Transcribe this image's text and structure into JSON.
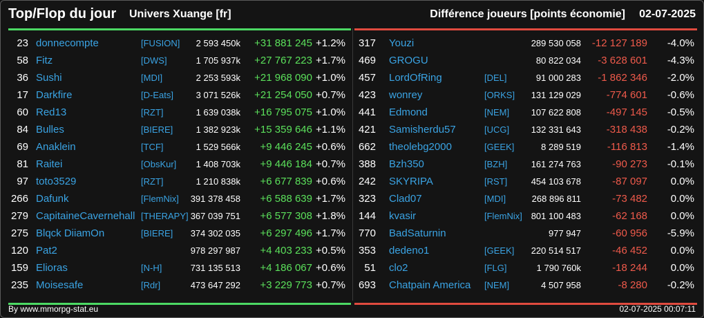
{
  "header": {
    "title": "Top/Flop du jour",
    "universe": "Univers Xuange [fr]",
    "subtitle": "Différence joueurs [points économie]",
    "date": "02-07-2025"
  },
  "top": [
    {
      "rank": "23",
      "name": "donnecompte",
      "alliance": "[FUSION]",
      "points": "2 593 450k",
      "delta": "+31 881 245",
      "pct": "+1.2%"
    },
    {
      "rank": "58",
      "name": "Fitz",
      "alliance": "[DWS]",
      "points": "1 705 937k",
      "delta": "+27 767 223",
      "pct": "+1.7%"
    },
    {
      "rank": "36",
      "name": "Sushi",
      "alliance": "[MDI]",
      "points": "2 253 593k",
      "delta": "+21 968 090",
      "pct": "+1.0%"
    },
    {
      "rank": "17",
      "name": "Darkfire",
      "alliance": "[D-Eats]",
      "points": "3 071 526k",
      "delta": "+21 254 050",
      "pct": "+0.7%"
    },
    {
      "rank": "60",
      "name": "Red13",
      "alliance": "[RZT]",
      "points": "1 639 038k",
      "delta": "+16 795 075",
      "pct": "+1.0%"
    },
    {
      "rank": "84",
      "name": "Bulles",
      "alliance": "[BIERE]",
      "points": "1 382 923k",
      "delta": "+15 359 646",
      "pct": "+1.1%"
    },
    {
      "rank": "69",
      "name": "Anaklein",
      "alliance": "[TCF]",
      "points": "1 529 566k",
      "delta": "+9 446 245",
      "pct": "+0.6%"
    },
    {
      "rank": "81",
      "name": "Raitei",
      "alliance": "[ObsKur]",
      "points": "1 408 703k",
      "delta": "+9 446 184",
      "pct": "+0.7%"
    },
    {
      "rank": "97",
      "name": "toto3529",
      "alliance": "[RZT]",
      "points": "1 210 838k",
      "delta": "+6 677 839",
      "pct": "+0.6%"
    },
    {
      "rank": "266",
      "name": "Dafunk",
      "alliance": "[FlemNix]",
      "points": "391 378 458",
      "delta": "+6 588 639",
      "pct": "+1.7%"
    },
    {
      "rank": "279",
      "name": "CapitaineCavernehall",
      "alliance": "[THERAPY]",
      "points": "367 039 751",
      "delta": "+6 577 308",
      "pct": "+1.8%"
    },
    {
      "rank": "275",
      "name": "Blqck DiiamOn",
      "alliance": "[BIERE]",
      "points": "374 302 035",
      "delta": "+6 297 496",
      "pct": "+1.7%"
    },
    {
      "rank": "120",
      "name": "Pat2",
      "alliance": "",
      "points": "978 297 987",
      "delta": "+4 403 233",
      "pct": "+0.5%"
    },
    {
      "rank": "159",
      "name": "Elioras",
      "alliance": "[N-H]",
      "points": "731 135 513",
      "delta": "+4 186 067",
      "pct": "+0.6%"
    },
    {
      "rank": "235",
      "name": "Moisesafe",
      "alliance": "[Rdr]",
      "points": "473 647 292",
      "delta": "+3 229 773",
      "pct": "+0.7%"
    }
  ],
  "flop": [
    {
      "rank": "317",
      "name": "Youzi",
      "alliance": "",
      "points": "289 530 058",
      "delta": "-12 127 189",
      "pct": "-4.0%"
    },
    {
      "rank": "469",
      "name": "GROGU",
      "alliance": "",
      "points": "80 822 034",
      "delta": "-3 628 601",
      "pct": "-4.3%"
    },
    {
      "rank": "457",
      "name": "LordOfRing",
      "alliance": "[DEL]",
      "points": "91 000 283",
      "delta": "-1 862 346",
      "pct": "-2.0%"
    },
    {
      "rank": "423",
      "name": "wonrey",
      "alliance": "[ORKS]",
      "points": "131 129 029",
      "delta": "-774 601",
      "pct": "-0.6%"
    },
    {
      "rank": "441",
      "name": "Edmond",
      "alliance": "[NEM]",
      "points": "107 622 808",
      "delta": "-497 145",
      "pct": "-0.5%"
    },
    {
      "rank": "421",
      "name": "Samisherdu57",
      "alliance": "[UCG]",
      "points": "132 331 643",
      "delta": "-318 438",
      "pct": "-0.2%"
    },
    {
      "rank": "662",
      "name": "theolebg2000",
      "alliance": "[GEEK]",
      "points": "8 289 519",
      "delta": "-116 813",
      "pct": "-1.4%"
    },
    {
      "rank": "388",
      "name": "Bzh350",
      "alliance": "[BZH]",
      "points": "161 274 763",
      "delta": "-90 273",
      "pct": "-0.1%"
    },
    {
      "rank": "242",
      "name": "SKYRIPA",
      "alliance": "[RST]",
      "points": "454 103 678",
      "delta": "-87 097",
      "pct": "0.0%"
    },
    {
      "rank": "323",
      "name": "Clad07",
      "alliance": "[MDI]",
      "points": "268 896 811",
      "delta": "-73 482",
      "pct": "0.0%"
    },
    {
      "rank": "144",
      "name": "kvasir",
      "alliance": "[FlemNix]",
      "points": "801 100 483",
      "delta": "-62 168",
      "pct": "0.0%"
    },
    {
      "rank": "770",
      "name": "BadSaturnin",
      "alliance": "",
      "points": "977 947",
      "delta": "-60 956",
      "pct": "-5.9%"
    },
    {
      "rank": "353",
      "name": "dedeno1",
      "alliance": "[GEEK]",
      "points": "220 514 517",
      "delta": "-46 452",
      "pct": "0.0%"
    },
    {
      "rank": "51",
      "name": "clo2",
      "alliance": "[FLG]",
      "points": "1 790 760k",
      "delta": "-18 244",
      "pct": "0.0%"
    },
    {
      "rank": "693",
      "name": "Chatpain America",
      "alliance": "[NEM]",
      "points": "4 507 958",
      "delta": "-8 280",
      "pct": "-0.2%"
    }
  ],
  "footer": {
    "credit": "By www.mmorpg-stat.eu",
    "timestamp": "02-07-2025 00:07:11"
  },
  "colors": {
    "top_accent": "#4cd964",
    "flop_accent": "#e04b3f",
    "link": "#3aa3e3",
    "positive": "#5be15b",
    "negative": "#ef5a4b"
  }
}
